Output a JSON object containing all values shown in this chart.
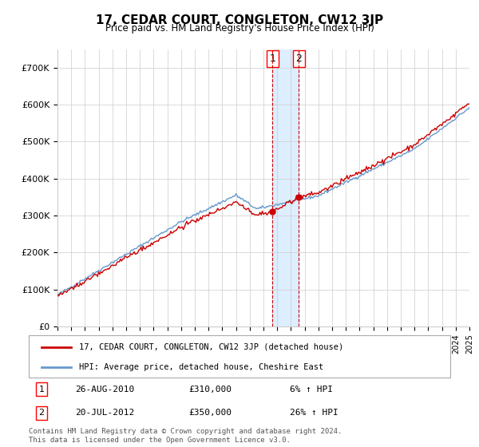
{
  "title": "17, CEDAR COURT, CONGLETON, CW12 3JP",
  "subtitle": "Price paid vs. HM Land Registry's House Price Index (HPI)",
  "legend_line1": "17, CEDAR COURT, CONGLETON, CW12 3JP (detached house)",
  "legend_line2": "HPI: Average price, detached house, Cheshire East",
  "transaction1_date": "26-AUG-2010",
  "transaction1_price": "£310,000",
  "transaction1_hpi": "6% ↑ HPI",
  "transaction2_date": "20-JUL-2012",
  "transaction2_price": "£350,000",
  "transaction2_hpi": "26% ↑ HPI",
  "footer": "Contains HM Land Registry data © Crown copyright and database right 2024.\nThis data is licensed under the Open Government Licence v3.0.",
  "red_color": "#cc0000",
  "blue_color": "#6699cc",
  "highlight_color": "#ddeeff",
  "grid_color": "#cccccc",
  "ylim": [
    0,
    750000
  ],
  "yticks": [
    0,
    100000,
    200000,
    300000,
    400000,
    500000,
    600000,
    700000
  ],
  "ytick_labels": [
    "£0",
    "£100K",
    "£200K",
    "£300K",
    "£400K",
    "£500K",
    "£600K",
    "£700K"
  ],
  "year_start": 1995,
  "year_end": 2025
}
